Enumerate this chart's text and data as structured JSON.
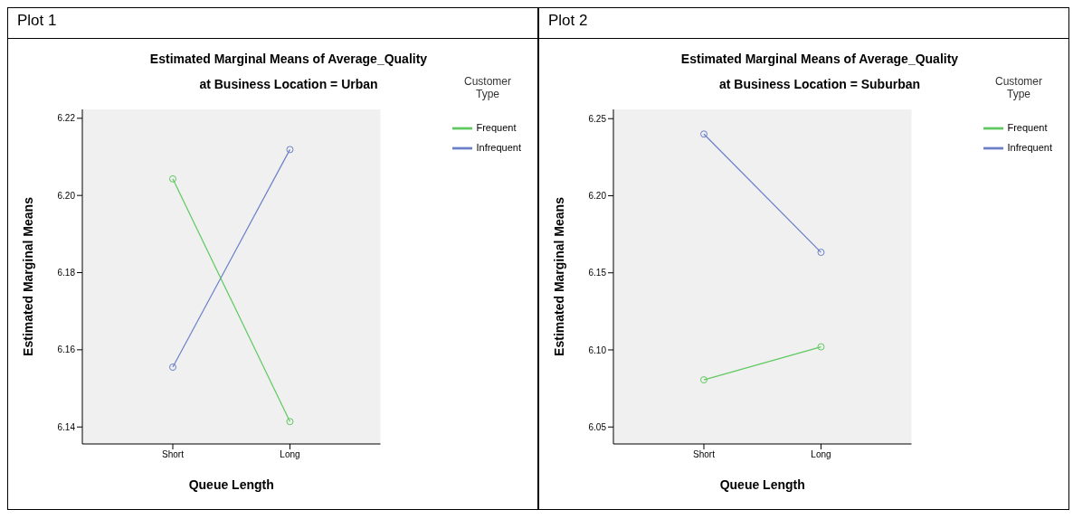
{
  "chart_data": [
    {
      "type": "line",
      "title": "Estimated Marginal Means of Average_Quality",
      "subtitle": "at Business Location = Urban",
      "annotations": [
        "Plot 1"
      ],
      "xlabel": "Queue Length",
      "ylabel": "Estimated Marginal Means",
      "legend_title": "Customer Type",
      "categories": [
        "Short",
        "Long"
      ],
      "series": [
        {
          "name": "Infrequent",
          "color": "#6a7fc8",
          "values": [
            6.1555,
            6.2119
          ]
        },
        {
          "name": "Frequent",
          "color": "#5fc85f",
          "values": [
            6.2043,
            6.1414
          ]
        }
      ],
      "ylim": [
        6.1356,
        6.2223
      ],
      "yticks": [
        6.14,
        6.16,
        6.18,
        {
          "value": 6.2,
          "label": "6.20"
        },
        6.22
      ],
      "grid": false,
      "legend": "top right",
      "marker": "circle",
      "line_style": "solid"
    },
    {
      "type": "line",
      "title": "Estimated Marginal Means of Average_Quality",
      "subtitle": "at Business Location = Suburban",
      "annotations": [
        "Plot 2"
      ],
      "xlabel": "Queue Length",
      "ylabel": "Estimated Marginal Means",
      "legend_title": "Customer Type",
      "categories": [
        "Short",
        "Long"
      ],
      "series": [
        {
          "name": "Infrequent",
          "color": "#6a7fc8",
          "values": [
            6.24,
            6.1633
          ]
        },
        {
          "name": "Frequent",
          "color": "#5fc85f",
          "values": [
            6.0806,
            6.102
          ]
        }
      ],
      "ylim": [
        6.039,
        6.256
      ],
      "yticks": [
        {
          "value": 6.05,
          "label": "6.05"
        },
        {
          "value": 6.1,
          "label": "6.10"
        },
        6.15,
        {
          "value": 6.2,
          "label": "6.20"
        },
        6.25
      ],
      "grid": false,
      "legend": "top right",
      "marker": "circle",
      "line_style": "solid"
    }
  ]
}
